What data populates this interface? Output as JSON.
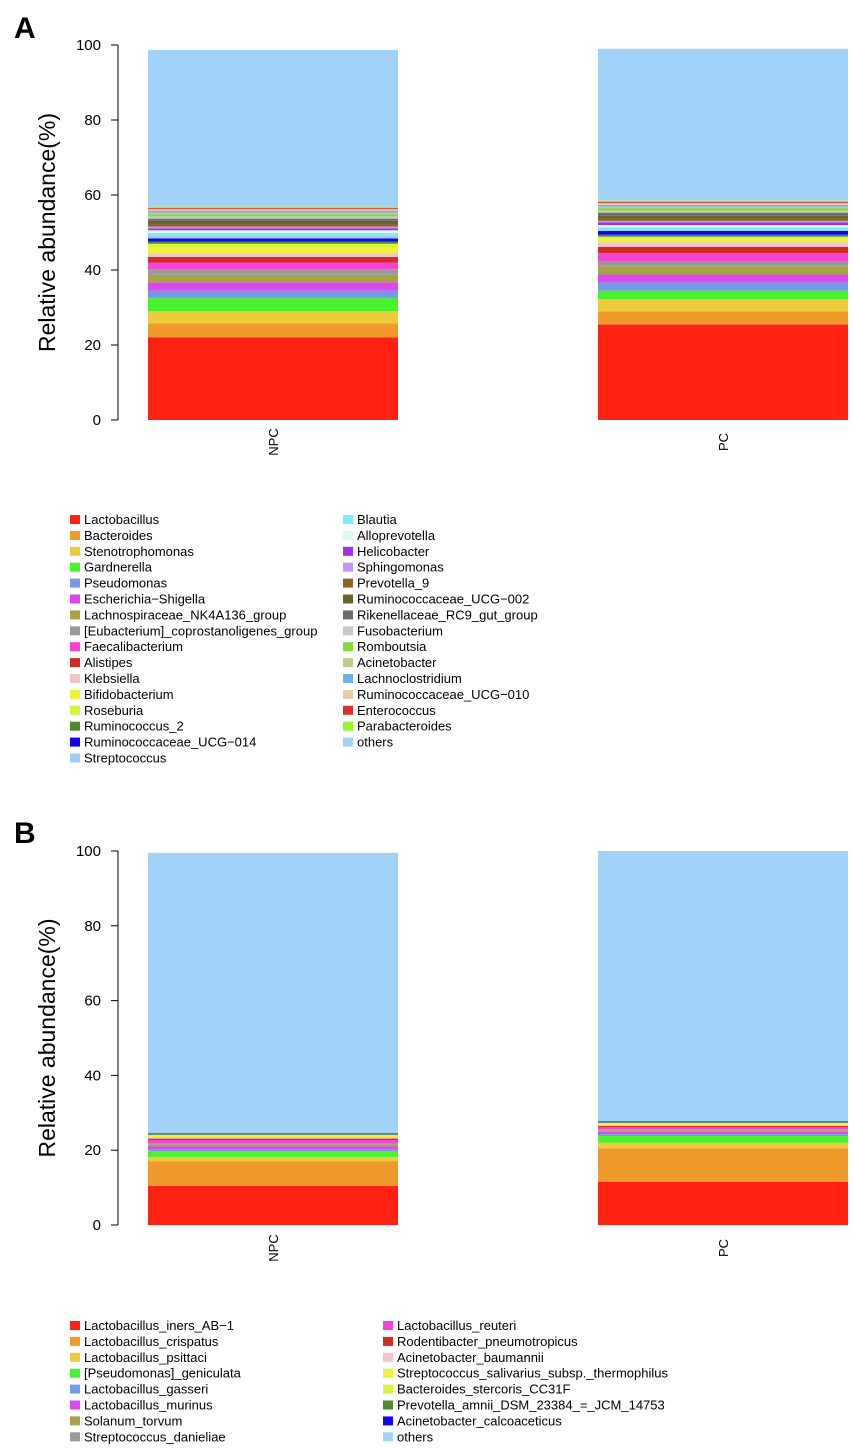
{
  "chart_data": [
    {
      "panel": "A",
      "type": "bar",
      "stacked": true,
      "ylabel": "Relative abundance(%)",
      "ylim": [
        0,
        100
      ],
      "yticks": [
        0,
        20,
        40,
        60,
        80,
        100
      ],
      "categories": [
        "NPC",
        "PC"
      ],
      "series": [
        {
          "name": "Lactobacillus",
          "color": "#FF2213",
          "values": [
            22.0,
            25.5
          ]
        },
        {
          "name": "Bacteroides",
          "color": "#EF9A2A",
          "values": [
            3.8,
            3.5
          ]
        },
        {
          "name": "Stenotrophomonas",
          "color": "#EDCB3B",
          "values": [
            3.2,
            3.2
          ]
        },
        {
          "name": "Gardnerella",
          "color": "#4AF22E",
          "values": [
            3.5,
            2.3
          ]
        },
        {
          "name": "Pseudomonas",
          "color": "#7499E6",
          "values": [
            2.0,
            2.2
          ]
        },
        {
          "name": "Escherichia−Shigella",
          "color": "#DA49EE",
          "values": [
            2.2,
            2.1
          ]
        },
        {
          "name": "Lachnospiraceae_NK4A136_group",
          "color": "#A7A344",
          "values": [
            2.0,
            2.2
          ]
        },
        {
          "name": "[Eubacterium]_coprostanoligenes_group",
          "color": "#9A9A9A",
          "values": [
            1.5,
            1.4
          ]
        },
        {
          "name": "Faecalibacterium",
          "color": "#F642D6",
          "values": [
            1.8,
            2.1
          ]
        },
        {
          "name": "Alistipes",
          "color": "#CF2D26",
          "values": [
            1.5,
            1.7
          ]
        },
        {
          "name": "Klebsiella",
          "color": "#F0C4C8",
          "values": [
            1.0,
            1.2
          ]
        },
        {
          "name": "Bifidobacterium",
          "color": "#F2F13A",
          "values": [
            1.5,
            0.9
          ]
        },
        {
          "name": "Roseburia",
          "color": "#D8F53D",
          "values": [
            1.0,
            0.6
          ]
        },
        {
          "name": "Ruminococcus_2",
          "color": "#4D8B2C",
          "values": [
            0.6,
            0.5
          ]
        },
        {
          "name": "Ruminococcaceae_UCG−014",
          "color": "#1307E8",
          "values": [
            0.8,
            1.0
          ]
        },
        {
          "name": "Streptococcus",
          "color": "#9FCCF5",
          "values": [
            0.7,
            0.5
          ]
        },
        {
          "name": "Blautia",
          "color": "#77EEF8",
          "values": [
            0.8,
            0.5
          ]
        },
        {
          "name": "Alloprevotella",
          "color": "#D9FAF6",
          "values": [
            0.7,
            0.6
          ]
        },
        {
          "name": "Helicobacter",
          "color": "#A131E8",
          "values": [
            0.5,
            0.7
          ]
        },
        {
          "name": "Sphingomonas",
          "color": "#C693F2",
          "values": [
            0.5,
            0.4
          ]
        },
        {
          "name": "Prevotella_9",
          "color": "#906427",
          "values": [
            0.8,
            0.6
          ]
        },
        {
          "name": "Ruminococcaceae_UCG−002",
          "color": "#676527",
          "values": [
            0.7,
            0.9
          ]
        },
        {
          "name": "Rikenellaceae_RC9_gut_group",
          "color": "#6C6C6C",
          "values": [
            0.6,
            0.7
          ]
        },
        {
          "name": "Fusobacterium",
          "color": "#C9C9C9",
          "values": [
            0.6,
            0.5
          ]
        },
        {
          "name": "Romboutsia",
          "color": "#86D93B",
          "values": [
            0.5,
            0.6
          ]
        },
        {
          "name": "Acinetobacter",
          "color": "#C6C98E",
          "values": [
            0.5,
            0.5
          ]
        },
        {
          "name": "Lachnoclostridium",
          "color": "#6FB2EA",
          "values": [
            0.5,
            0.5
          ]
        },
        {
          "name": "Ruminococcaceae_UCG−010",
          "color": "#EACAA6",
          "values": [
            0.4,
            0.5
          ]
        },
        {
          "name": "Enterococcus",
          "color": "#DC2E2A",
          "values": [
            0.3,
            0.3
          ]
        },
        {
          "name": "Parabacteroides",
          "color": "#97F52C",
          "values": [
            0.4,
            0.3
          ]
        },
        {
          "name": "others",
          "color": "#A3D2F9",
          "values": [
            41.8,
            40.5
          ]
        }
      ]
    },
    {
      "panel": "B",
      "type": "bar",
      "stacked": true,
      "ylabel": "Relative abundance(%)",
      "ylim": [
        0,
        100
      ],
      "yticks": [
        0,
        20,
        40,
        60,
        80,
        100
      ],
      "categories": [
        "NPC",
        "PC"
      ],
      "series": [
        {
          "name": "Lactobacillus_iners_AB−1",
          "color": "#FF2213",
          "values": [
            10.5,
            11.5
          ]
        },
        {
          "name": "Lactobacillus_crispatus",
          "color": "#EF9A2A",
          "values": [
            6.5,
            9.0
          ]
        },
        {
          "name": "Lactobacillus_psittaci",
          "color": "#EDCB3B",
          "values": [
            1.2,
            1.5
          ]
        },
        {
          "name": "[Pseudomonas]_geniculata",
          "color": "#4AF22E",
          "values": [
            1.5,
            1.8
          ]
        },
        {
          "name": "Lactobacillus_gasseri",
          "color": "#7499E6",
          "values": [
            0.6,
            0.5
          ]
        },
        {
          "name": "Lactobacillus_murinus",
          "color": "#DA49EE",
          "values": [
            0.7,
            0.6
          ]
        },
        {
          "name": "Solanum_torvum",
          "color": "#A7A344",
          "values": [
            0.5,
            0.4
          ]
        },
        {
          "name": "Streptococcus_danieliae",
          "color": "#9A9A9A",
          "values": [
            0.4,
            0.3
          ]
        },
        {
          "name": "Lactobacillus_reuteri",
          "color": "#F642D6",
          "values": [
            0.8,
            0.6
          ]
        },
        {
          "name": "Rodentibacter_pneumotropicus",
          "color": "#CF2D26",
          "values": [
            0.4,
            0.3
          ]
        },
        {
          "name": "Acinetobacter_baumannii",
          "color": "#F0C4C8",
          "values": [
            0.4,
            0.3
          ]
        },
        {
          "name": "Streptococcus_salivarius_subsp._thermophilus",
          "color": "#F2F13A",
          "values": [
            0.3,
            0.3
          ]
        },
        {
          "name": "Bacteroides_stercoris_CC31F",
          "color": "#D8F53D",
          "values": [
            0.3,
            0.2
          ]
        },
        {
          "name": "Prevotella_amnii_DSM_23384_=_JCM_14753",
          "color": "#4D8B2C",
          "values": [
            0.2,
            0.2
          ]
        },
        {
          "name": "Acinetobacter_calcoaceticus",
          "color": "#1307E8",
          "values": [
            0.2,
            0.2
          ]
        },
        {
          "name": "others",
          "color": "#A3D2F9",
          "values": [
            75.0,
            72.3
          ]
        }
      ]
    }
  ]
}
